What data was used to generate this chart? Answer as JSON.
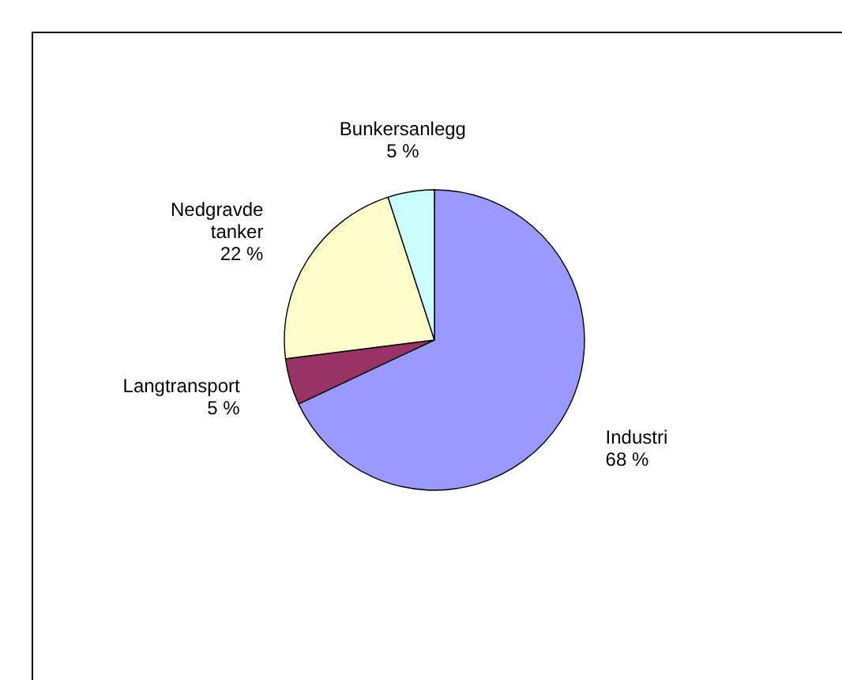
{
  "chart_data": {
    "type": "pie",
    "categories": [
      "Industri",
      "Langtransport",
      "Nedgravde tanker",
      "Bunkersanlegg"
    ],
    "values": [
      68,
      5,
      22,
      5
    ],
    "value_labels": [
      "68 %",
      "5 %",
      "22 %",
      "5 %"
    ],
    "colors": [
      "#9999ff",
      "#993366",
      "#ffffcc",
      "#ccffff"
    ],
    "legend": false
  }
}
